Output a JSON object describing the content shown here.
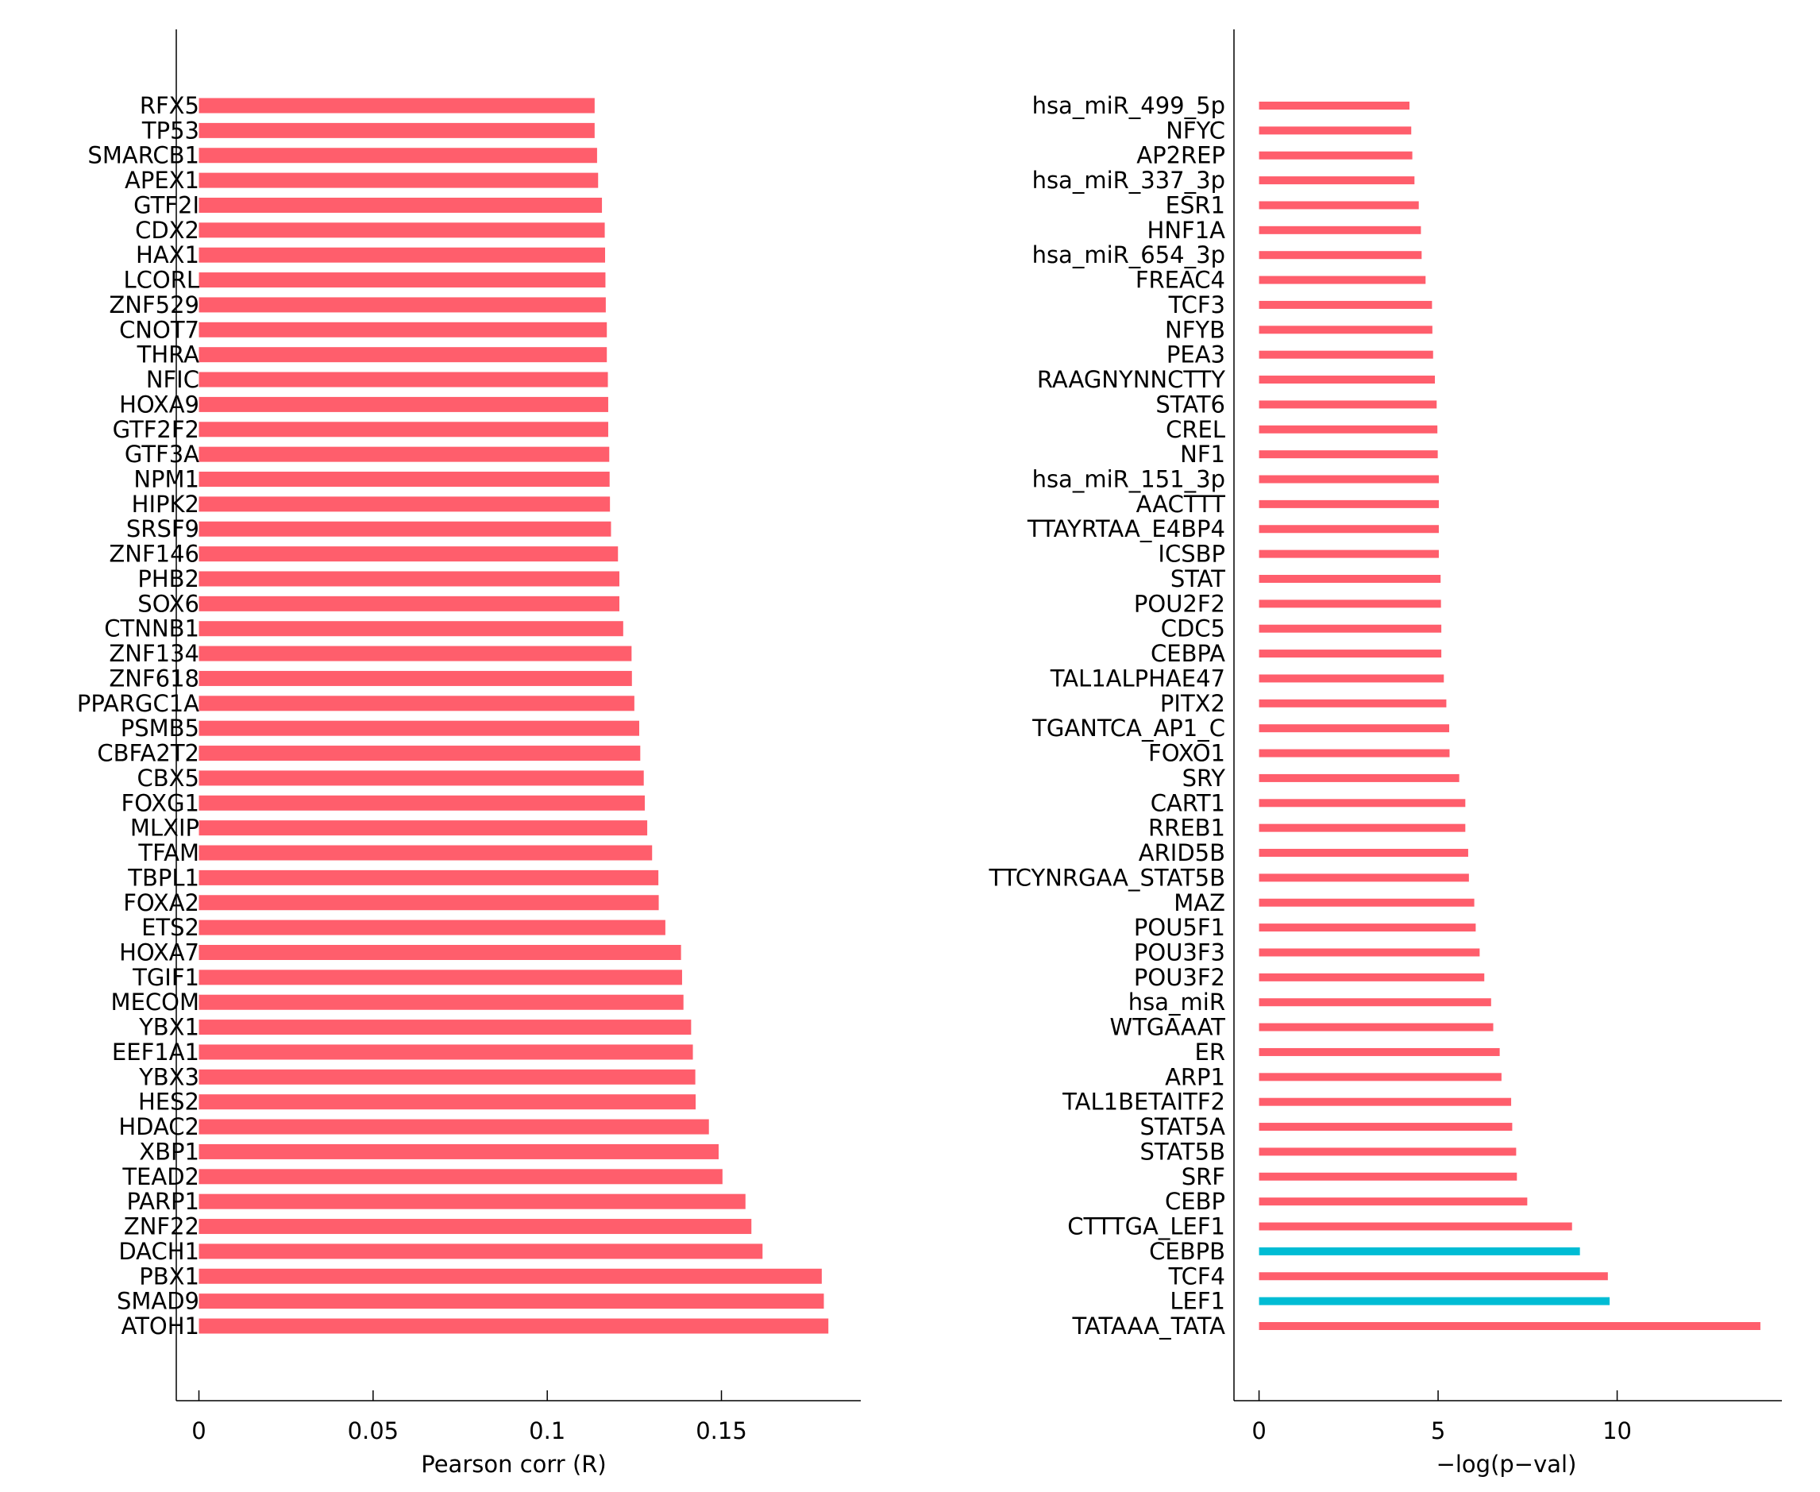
{
  "colors": {
    "default_bar": "#FF5E6C",
    "highlight_bar": "#00BCD4",
    "axis": "#000000"
  },
  "chart_data": [
    {
      "type": "bar",
      "orientation": "horizontal",
      "title": "",
      "xlabel": "Pearson corr (R)",
      "ylabel": "",
      "xlim": [
        -0.0065,
        0.19
      ],
      "xticks": [
        0,
        0.05,
        0.1,
        0.15
      ],
      "xtick_labels": [
        "0",
        "0.05",
        "0.1",
        "0.15"
      ],
      "grid": false,
      "categories": [
        "RFX5",
        "TP53",
        "SMARCB1",
        "APEX1",
        "GTF2I",
        "CDX2",
        "HAX1",
        "LCORL",
        "ZNF529",
        "CNOT7",
        "THRA",
        "NFIC",
        "HOXA9",
        "GTF2F2",
        "GTF3A",
        "NPM1",
        "HIPK2",
        "SRSF9",
        "ZNF146",
        "PHB2",
        "SOX6",
        "CTNNB1",
        "ZNF134",
        "ZNF618",
        "PPARGC1A",
        "PSMB5",
        "CBFA2T2",
        "CBX5",
        "FOXG1",
        "MLXIP",
        "TFAM",
        "TBPL1",
        "FOXA2",
        "ETS2",
        "HOXA7",
        "TGIF1",
        "MECOM",
        "YBX1",
        "EEF1A1",
        "YBX3",
        "HES2",
        "HDAC2",
        "XBP1",
        "TEAD2",
        "PARP1",
        "ZNF22",
        "DACH1",
        "PBX1",
        "SMAD9",
        "ATOH1"
      ],
      "values": [
        0.1136,
        0.1136,
        0.1143,
        0.1146,
        0.1157,
        0.1165,
        0.1166,
        0.1167,
        0.1168,
        0.1171,
        0.1171,
        0.1174,
        0.1175,
        0.1175,
        0.1178,
        0.1179,
        0.118,
        0.1183,
        0.1203,
        0.1207,
        0.1207,
        0.1218,
        0.1242,
        0.1243,
        0.125,
        0.1264,
        0.1267,
        0.1277,
        0.128,
        0.1287,
        0.1301,
        0.1319,
        0.132,
        0.1339,
        0.1384,
        0.1387,
        0.1391,
        0.1413,
        0.1418,
        0.1425,
        0.1426,
        0.1464,
        0.1492,
        0.1503,
        0.1569,
        0.1586,
        0.1618,
        0.1788,
        0.1794,
        0.1807
      ],
      "highlighted": []
    },
    {
      "type": "bar",
      "orientation": "horizontal",
      "title": "",
      "xlabel": "−log(p−val)",
      "ylabel": "",
      "xlim": [
        -0.7,
        14.6
      ],
      "xticks": [
        0,
        5,
        10
      ],
      "xtick_labels": [
        "0",
        "5",
        "10"
      ],
      "grid": false,
      "categories": [
        "hsa_miR_499_5p",
        "NFYC",
        "AP2REP",
        "hsa_miR_337_3p",
        "ESR1",
        "HNF1A",
        "hsa_miR_654_3p",
        "FREAC4",
        "TCF3",
        "NFYB",
        "PEA3",
        "RAAGNYNNCTTY",
        "STAT6",
        "CREL",
        "NF1",
        "hsa_miR_151_3p",
        "AACTTT",
        "TTAYRTAA_E4BP4",
        "ICSBP",
        "STAT",
        "POU2F2",
        "CDC5",
        "CEBPA",
        "TAL1ALPHAE47",
        "PITX2",
        "TGANTCA_AP1_C",
        "FOXO1",
        "SRY",
        "CART1",
        "RREB1",
        "ARID5B",
        "TTCYNRGAA_STAT5B",
        "MAZ",
        "POU5F1",
        "POU3F3",
        "POU3F2",
        "hsa_miR",
        "WTGAAAT",
        "ER",
        "ARP1",
        "TAL1BETAITF2",
        "STAT5A",
        "STAT5B",
        "SRF",
        "CEBP",
        "CTTTGA_LEF1",
        "CEBPB",
        "TCF4",
        "LEF1",
        "TATAAA_TATA"
      ],
      "values": [
        4.2,
        4.25,
        4.28,
        4.34,
        4.46,
        4.52,
        4.54,
        4.65,
        4.83,
        4.84,
        4.86,
        4.91,
        4.96,
        4.98,
        4.99,
        5.02,
        5.02,
        5.02,
        5.02,
        5.07,
        5.08,
        5.09,
        5.09,
        5.16,
        5.23,
        5.31,
        5.32,
        5.59,
        5.76,
        5.76,
        5.84,
        5.86,
        6.01,
        6.05,
        6.16,
        6.29,
        6.48,
        6.54,
        6.72,
        6.77,
        7.04,
        7.07,
        7.18,
        7.2,
        7.49,
        8.74,
        8.96,
        9.74,
        9.79,
        14.0
      ],
      "highlighted": [
        "CEBPB",
        "LEF1"
      ]
    }
  ]
}
